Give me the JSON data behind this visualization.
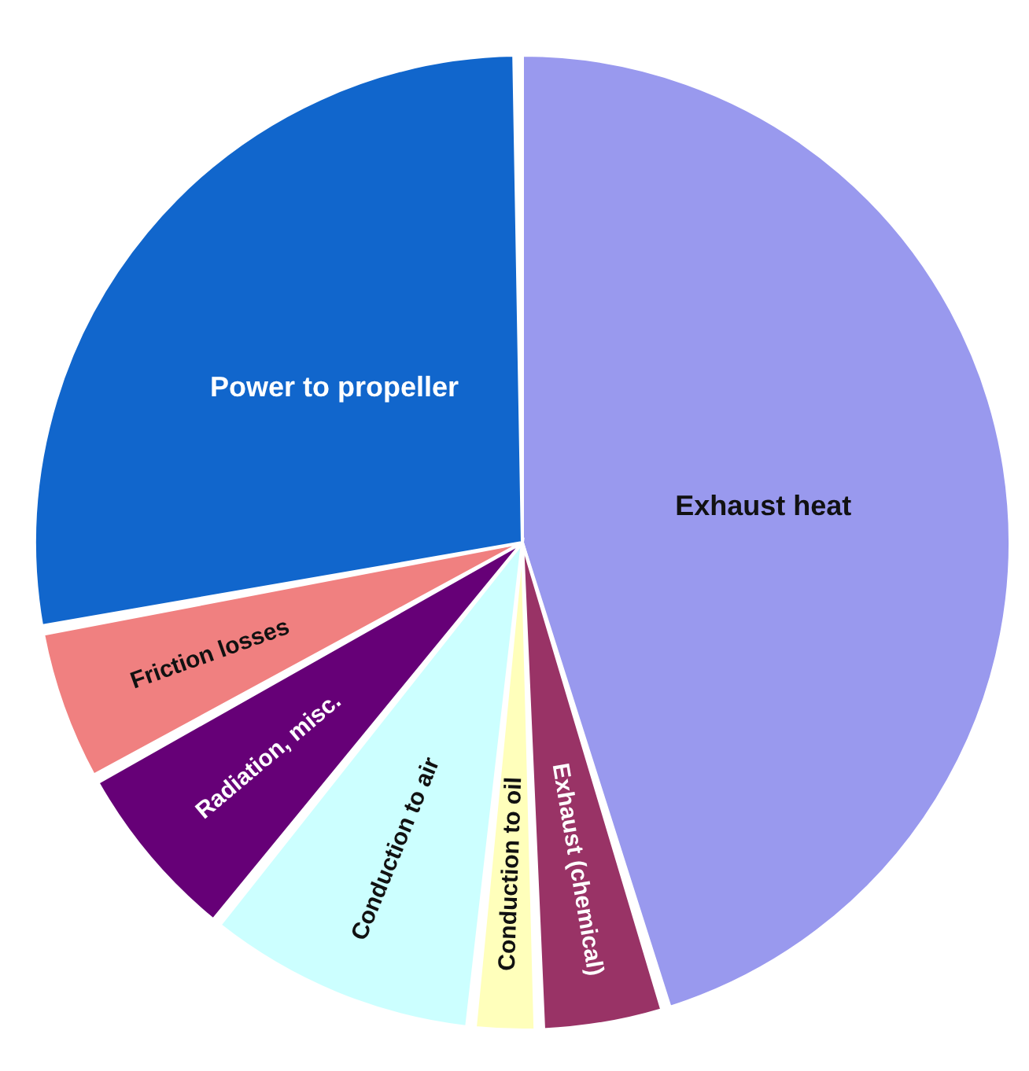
{
  "chart_data": {
    "type": "pie",
    "categories": [
      "Exhaust heat",
      "Exhaust (chemical)",
      "Conduction to oil",
      "Conduction to air",
      "Radiation, misc.",
      "Friction losses",
      "Power to propeller"
    ],
    "values": [
      46,
      4,
      2,
      9,
      6,
      5,
      28
    ],
    "colors": [
      "#9999ee",
      "#993366",
      "#ffffbb",
      "#ccffff",
      "#660077",
      "#f08080",
      "#1166cc"
    ],
    "legend": false
  }
}
